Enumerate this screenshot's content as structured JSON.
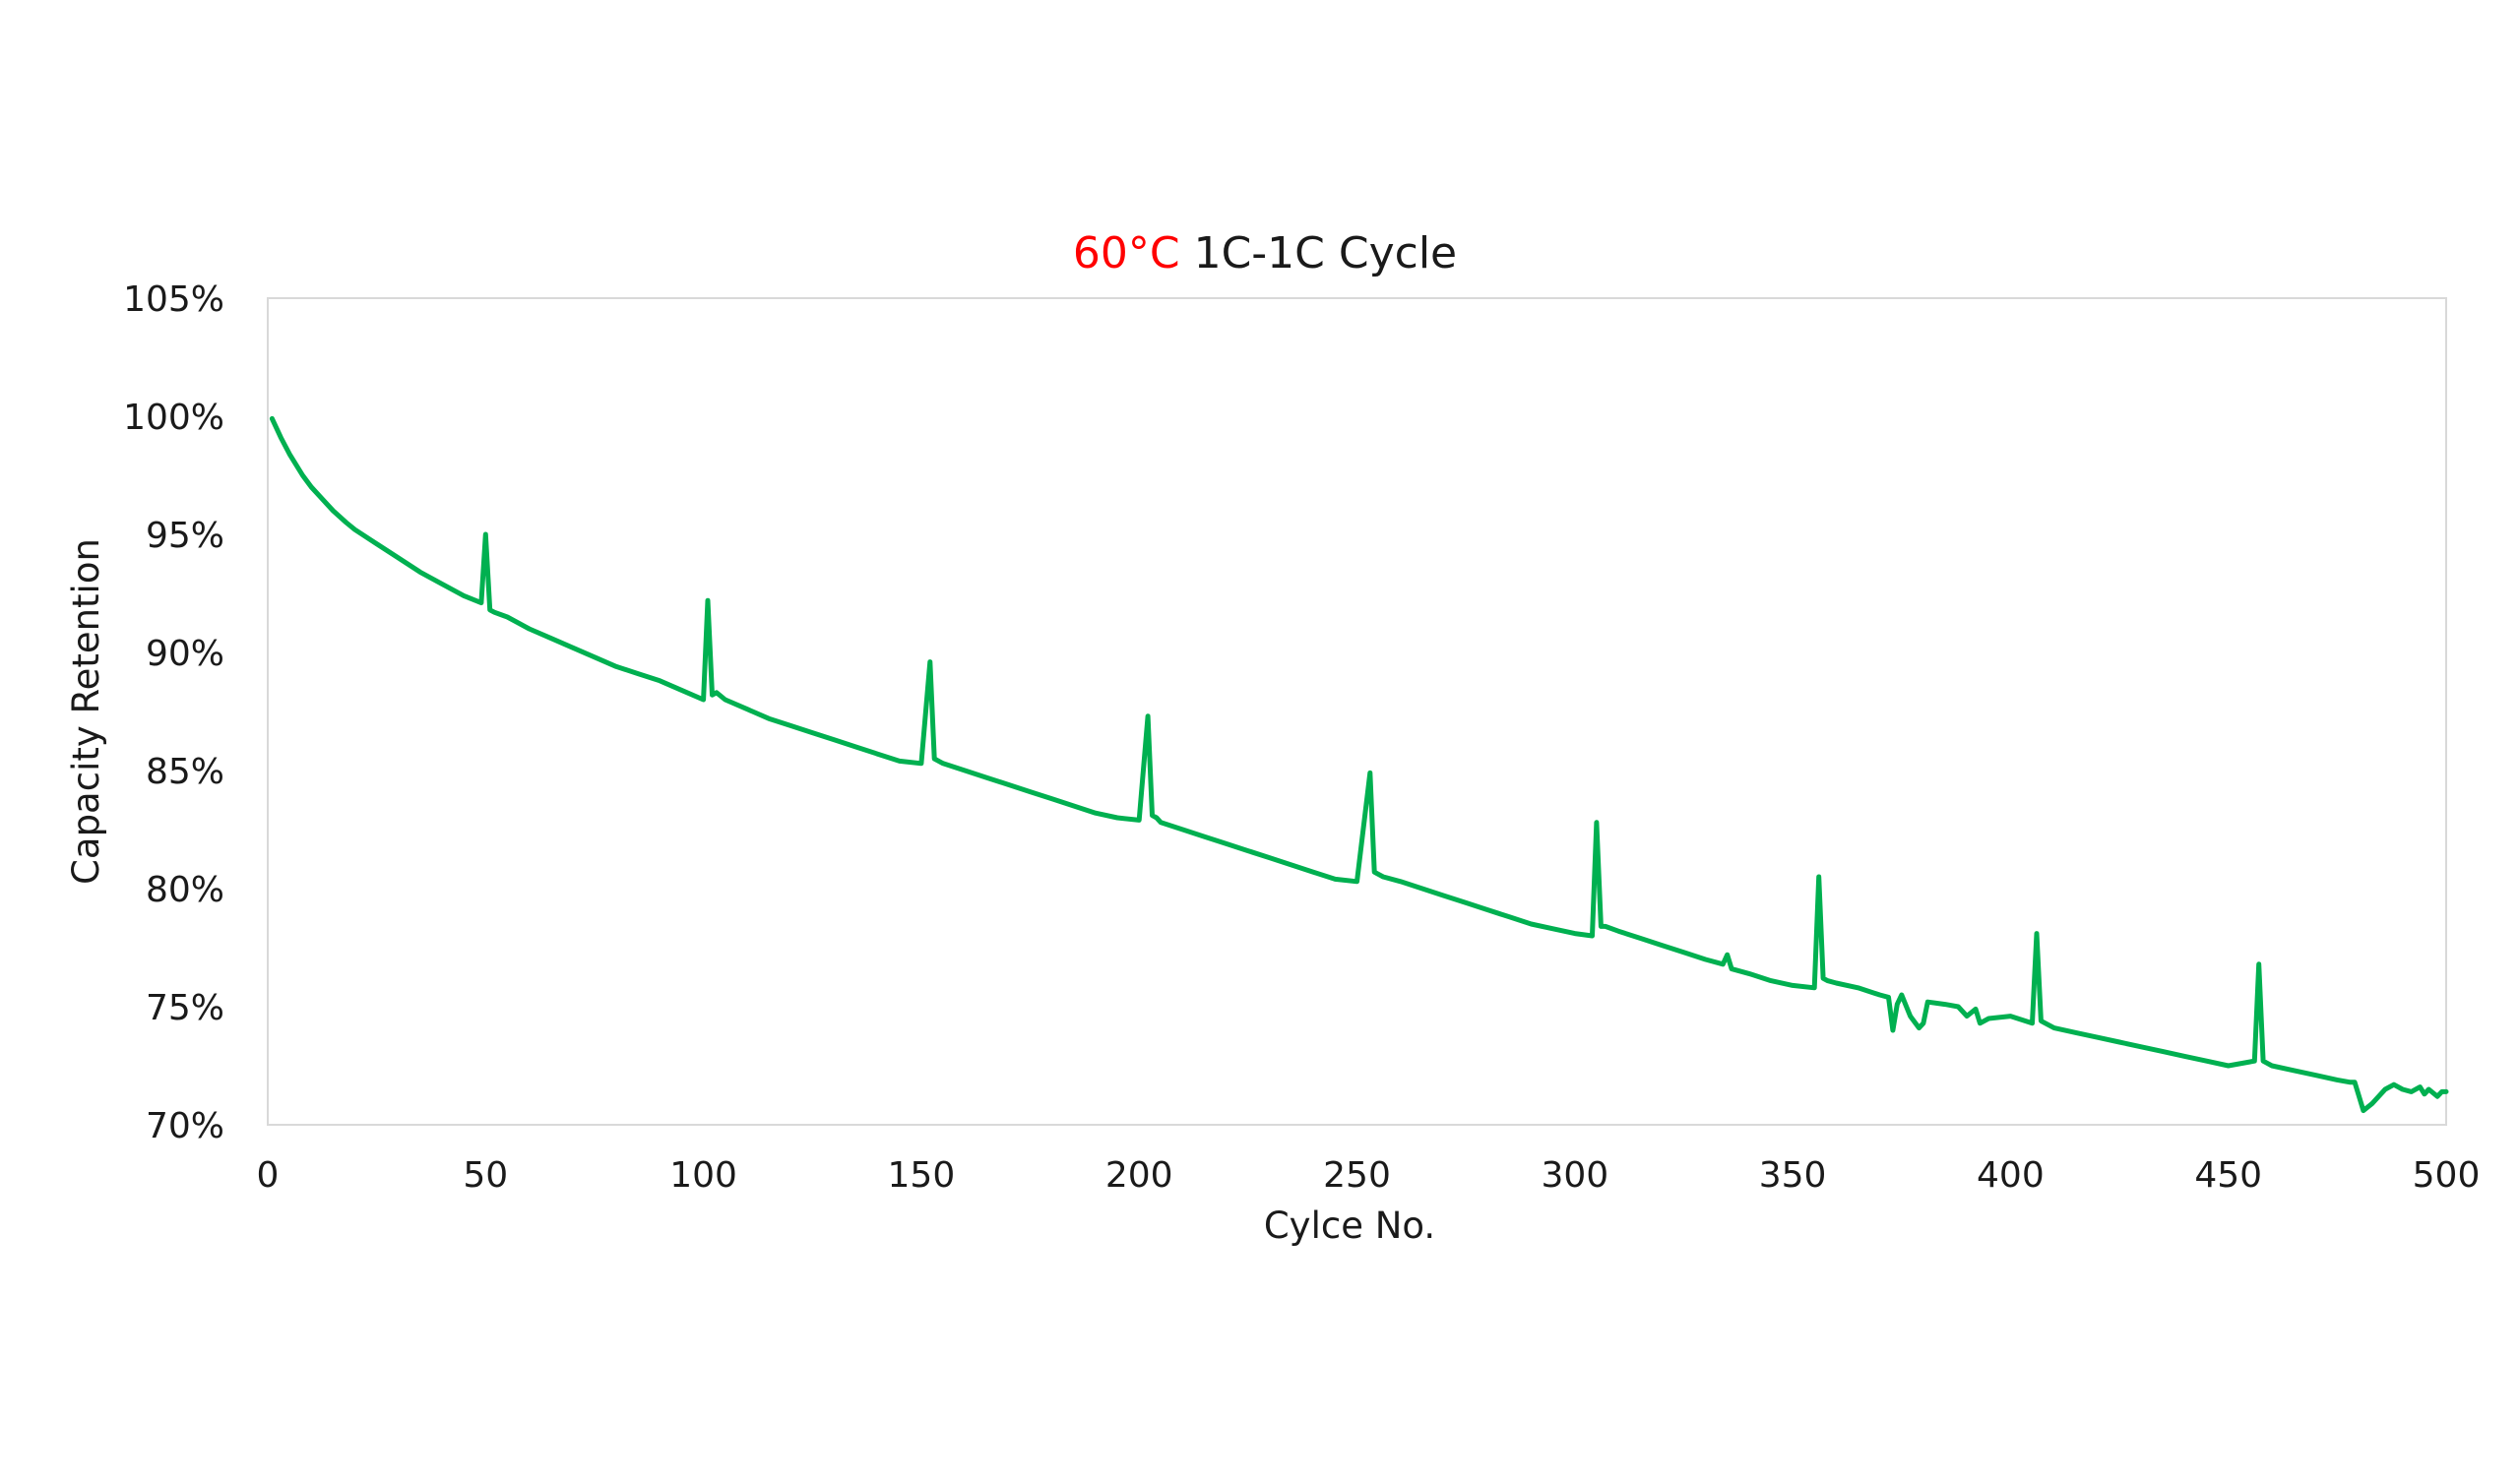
{
  "chart_data": {
    "type": "line",
    "title_highlight": "60°C",
    "title_rest": " 1C-1C Cycle",
    "title_highlight_color": "#ff0000",
    "xlabel": "Cylce No.",
    "ylabel": "Capacity Retention",
    "xlim": [
      0,
      500
    ],
    "ylim": [
      70,
      105
    ],
    "x_ticks": [
      0,
      50,
      100,
      150,
      200,
      250,
      300,
      350,
      400,
      450,
      500
    ],
    "x_tick_labels": [
      "0",
      "50",
      "100",
      "150",
      "200",
      "250",
      "300",
      "350",
      "400",
      "450",
      "500"
    ],
    "y_ticks": [
      70,
      75,
      80,
      85,
      90,
      95,
      100,
      105
    ],
    "y_tick_labels": [
      "70%",
      "75%",
      "80%",
      "85%",
      "90%",
      "95%",
      "100%",
      "105%"
    ],
    "grid": false,
    "legend": "none",
    "series": [
      {
        "color": "#00b050",
        "x": [
          1,
          3,
          5,
          8,
          10,
          12,
          15,
          18,
          20,
          25,
          30,
          35,
          40,
          45,
          49,
          50,
          51,
          52,
          55,
          60,
          65,
          70,
          75,
          80,
          85,
          90,
          95,
          100,
          101,
          102,
          103,
          105,
          110,
          115,
          120,
          125,
          130,
          135,
          140,
          145,
          150,
          152,
          153,
          154,
          155,
          160,
          165,
          170,
          175,
          180,
          185,
          190,
          195,
          200,
          202,
          203,
          204,
          205,
          210,
          215,
          220,
          225,
          230,
          235,
          240,
          245,
          250,
          253,
          254,
          255,
          256,
          260,
          265,
          270,
          275,
          280,
          285,
          290,
          295,
          300,
          304,
          305,
          306,
          307,
          310,
          315,
          320,
          325,
          330,
          334,
          335,
          336,
          340,
          345,
          350,
          355,
          356,
          357,
          358,
          360,
          365,
          370,
          372,
          373,
          374,
          375,
          377,
          379,
          380,
          381,
          385,
          388,
          390,
          392,
          393,
          395,
          400,
          405,
          406,
          407,
          408,
          410,
          415,
          420,
          425,
          430,
          435,
          440,
          445,
          450,
          456,
          457,
          458,
          459,
          460,
          465,
          470,
          475,
          478,
          479,
          480,
          481,
          483,
          485,
          486,
          488,
          490,
          492,
          494,
          495,
          496,
          498,
          499,
          500
        ],
        "y": [
          99.9,
          99.1,
          98.4,
          97.5,
          97.0,
          96.6,
          96.0,
          95.5,
          95.2,
          94.6,
          94.0,
          93.4,
          92.9,
          92.4,
          92.1,
          95.0,
          91.8,
          91.7,
          91.5,
          91.0,
          90.6,
          90.2,
          89.8,
          89.4,
          89.1,
          88.8,
          88.4,
          88.0,
          92.2,
          88.2,
          88.3,
          88.0,
          87.6,
          87.2,
          86.9,
          86.6,
          86.3,
          86.0,
          85.7,
          85.4,
          85.3,
          89.6,
          85.5,
          85.4,
          85.3,
          85.0,
          84.7,
          84.4,
          84.1,
          83.8,
          83.5,
          83.2,
          83.0,
          82.9,
          87.3,
          83.1,
          83.0,
          82.8,
          82.5,
          82.2,
          81.9,
          81.6,
          81.3,
          81.0,
          80.7,
          80.4,
          80.3,
          84.9,
          80.7,
          80.6,
          80.5,
          80.3,
          80.0,
          79.7,
          79.4,
          79.1,
          78.8,
          78.5,
          78.3,
          78.1,
          78.0,
          82.8,
          78.4,
          78.4,
          78.2,
          77.9,
          77.6,
          77.3,
          77.0,
          76.8,
          77.2,
          76.6,
          76.4,
          76.1,
          75.9,
          75.8,
          80.5,
          76.2,
          76.1,
          76.0,
          75.8,
          75.5,
          75.4,
          74.0,
          75.1,
          75.5,
          74.6,
          74.1,
          74.3,
          75.2,
          75.1,
          75.0,
          74.6,
          74.9,
          74.3,
          74.5,
          74.6,
          74.3,
          78.1,
          74.4,
          74.3,
          74.1,
          73.9,
          73.7,
          73.5,
          73.3,
          73.1,
          72.9,
          72.7,
          72.5,
          72.7,
          76.8,
          72.7,
          72.6,
          72.5,
          72.3,
          72.1,
          71.9,
          71.8,
          71.8,
          71.2,
          70.6,
          70.9,
          71.3,
          71.5,
          71.7,
          71.5,
          71.4,
          71.6,
          71.3,
          71.5,
          71.2,
          71.4,
          71.4
        ]
      }
    ]
  }
}
